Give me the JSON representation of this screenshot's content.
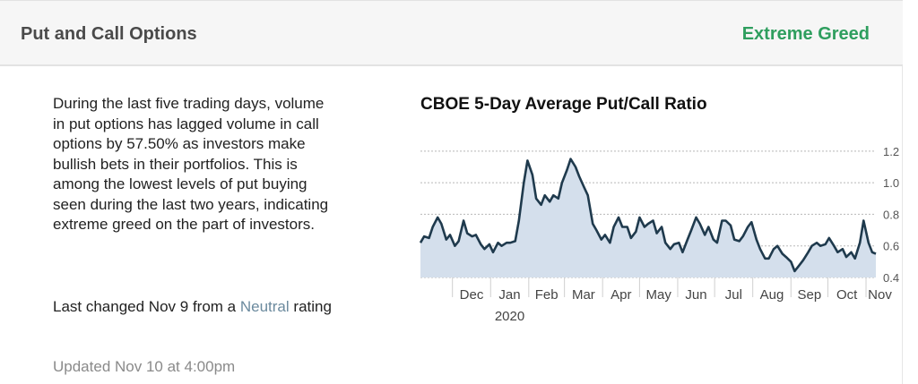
{
  "header": {
    "title": "Put and Call Options",
    "rating": "Extreme Greed"
  },
  "description": "During the last five trading days, volume in put options has lagged volume in call options by 57.50% as investors make bullish bets in their portfolios. This is among the lowest levels of put buying seen during the last two years, indicating extreme greed on the part of investors.",
  "change": {
    "prefix": "Last changed Nov 9 from a",
    "previous_rating": "Neutral",
    "suffix": "rating"
  },
  "updated": "Updated Nov 10 at 4:00pm",
  "colors": {
    "rating": "#2e9e5e",
    "line": "#1f3a4d",
    "fill": "#d4dfec"
  },
  "chart_data": {
    "type": "area",
    "title": "CBOE 5-Day Average Put/Call Ratio",
    "x_tick_labels": [
      "Dec",
      "Jan",
      "Feb",
      "Mar",
      "Apr",
      "May",
      "Jun",
      "Jul",
      "Aug",
      "Sep",
      "Oct",
      "Nov"
    ],
    "year_label": "2020",
    "y_ticks": [
      0.4,
      0.6,
      0.8,
      1.0,
      1.2
    ],
    "y_tick_labels": [
      "0.4",
      "0.6",
      "0.8",
      "1.0",
      "1.2"
    ],
    "ylim": [
      0.4,
      1.25
    ],
    "grid": true,
    "x_start": "2019-11-05",
    "x_end": "2020-11-09",
    "month_starts": [
      "2019-12-01",
      "2020-01-01",
      "2020-02-01",
      "2020-03-01",
      "2020-04-01",
      "2020-05-01",
      "2020-06-01",
      "2020-07-01",
      "2020-08-01",
      "2020-09-01",
      "2020-10-01",
      "2020-11-01"
    ],
    "series": [
      {
        "points": [
          [
            "2019-11-05",
            0.62
          ],
          [
            "2019-11-08",
            0.66
          ],
          [
            "2019-11-12",
            0.65
          ],
          [
            "2019-11-15",
            0.72
          ],
          [
            "2019-11-19",
            0.78
          ],
          [
            "2019-11-22",
            0.74
          ],
          [
            "2019-11-26",
            0.64
          ],
          [
            "2019-11-29",
            0.67
          ],
          [
            "2019-12-03",
            0.6
          ],
          [
            "2019-12-06",
            0.63
          ],
          [
            "2019-12-10",
            0.76
          ],
          [
            "2019-12-13",
            0.68
          ],
          [
            "2019-12-17",
            0.66
          ],
          [
            "2019-12-20",
            0.67
          ],
          [
            "2019-12-24",
            0.61
          ],
          [
            "2019-12-27",
            0.58
          ],
          [
            "2019-12-31",
            0.61
          ],
          [
            "2020-01-03",
            0.56
          ],
          [
            "2020-01-07",
            0.62
          ],
          [
            "2020-01-10",
            0.6
          ],
          [
            "2020-01-14",
            0.62
          ],
          [
            "2020-01-17",
            0.62
          ],
          [
            "2020-01-21",
            0.63
          ],
          [
            "2020-01-24",
            0.76
          ],
          [
            "2020-01-28",
            1.0
          ],
          [
            "2020-01-31",
            1.14
          ],
          [
            "2020-02-04",
            1.05
          ],
          [
            "2020-02-07",
            0.9
          ],
          [
            "2020-02-11",
            0.86
          ],
          [
            "2020-02-14",
            0.92
          ],
          [
            "2020-02-18",
            0.88
          ],
          [
            "2020-02-21",
            0.92
          ],
          [
            "2020-02-25",
            0.9
          ],
          [
            "2020-02-28",
            1.0
          ],
          [
            "2020-03-03",
            1.08
          ],
          [
            "2020-03-06",
            1.15
          ],
          [
            "2020-03-10",
            1.1
          ],
          [
            "2020-03-13",
            1.04
          ],
          [
            "2020-03-17",
            0.97
          ],
          [
            "2020-03-20",
            0.92
          ],
          [
            "2020-03-24",
            0.74
          ],
          [
            "2020-03-27",
            0.7
          ],
          [
            "2020-03-31",
            0.64
          ],
          [
            "2020-04-03",
            0.67
          ],
          [
            "2020-04-07",
            0.62
          ],
          [
            "2020-04-10",
            0.72
          ],
          [
            "2020-04-14",
            0.78
          ],
          [
            "2020-04-17",
            0.72
          ],
          [
            "2020-04-21",
            0.72
          ],
          [
            "2020-04-24",
            0.65
          ],
          [
            "2020-04-28",
            0.69
          ],
          [
            "2020-05-01",
            0.78
          ],
          [
            "2020-05-05",
            0.72
          ],
          [
            "2020-05-08",
            0.74
          ],
          [
            "2020-05-12",
            0.76
          ],
          [
            "2020-05-15",
            0.68
          ],
          [
            "2020-05-19",
            0.72
          ],
          [
            "2020-05-22",
            0.62
          ],
          [
            "2020-05-26",
            0.58
          ],
          [
            "2020-05-29",
            0.61
          ],
          [
            "2020-06-02",
            0.62
          ],
          [
            "2020-06-05",
            0.56
          ],
          [
            "2020-06-09",
            0.64
          ],
          [
            "2020-06-12",
            0.7
          ],
          [
            "2020-06-16",
            0.78
          ],
          [
            "2020-06-19",
            0.74
          ],
          [
            "2020-06-23",
            0.67
          ],
          [
            "2020-06-26",
            0.72
          ],
          [
            "2020-06-30",
            0.64
          ],
          [
            "2020-07-03",
            0.62
          ],
          [
            "2020-07-07",
            0.76
          ],
          [
            "2020-07-10",
            0.76
          ],
          [
            "2020-07-14",
            0.73
          ],
          [
            "2020-07-17",
            0.64
          ],
          [
            "2020-07-21",
            0.63
          ],
          [
            "2020-07-24",
            0.66
          ],
          [
            "2020-07-28",
            0.72
          ],
          [
            "2020-07-31",
            0.75
          ],
          [
            "2020-08-04",
            0.64
          ],
          [
            "2020-08-07",
            0.58
          ],
          [
            "2020-08-11",
            0.52
          ],
          [
            "2020-08-14",
            0.52
          ],
          [
            "2020-08-18",
            0.58
          ],
          [
            "2020-08-21",
            0.6
          ],
          [
            "2020-08-25",
            0.55
          ],
          [
            "2020-08-28",
            0.53
          ],
          [
            "2020-09-01",
            0.5
          ],
          [
            "2020-09-04",
            0.44
          ],
          [
            "2020-09-08",
            0.48
          ],
          [
            "2020-09-11",
            0.51
          ],
          [
            "2020-09-15",
            0.56
          ],
          [
            "2020-09-18",
            0.6
          ],
          [
            "2020-09-22",
            0.62
          ],
          [
            "2020-09-25",
            0.6
          ],
          [
            "2020-09-29",
            0.61
          ],
          [
            "2020-10-02",
            0.65
          ],
          [
            "2020-10-06",
            0.6
          ],
          [
            "2020-10-09",
            0.56
          ],
          [
            "2020-10-13",
            0.58
          ],
          [
            "2020-10-16",
            0.53
          ],
          [
            "2020-10-20",
            0.56
          ],
          [
            "2020-10-23",
            0.52
          ],
          [
            "2020-10-27",
            0.62
          ],
          [
            "2020-10-30",
            0.76
          ],
          [
            "2020-11-03",
            0.62
          ],
          [
            "2020-11-06",
            0.56
          ],
          [
            "2020-11-09",
            0.55
          ]
        ]
      }
    ]
  }
}
